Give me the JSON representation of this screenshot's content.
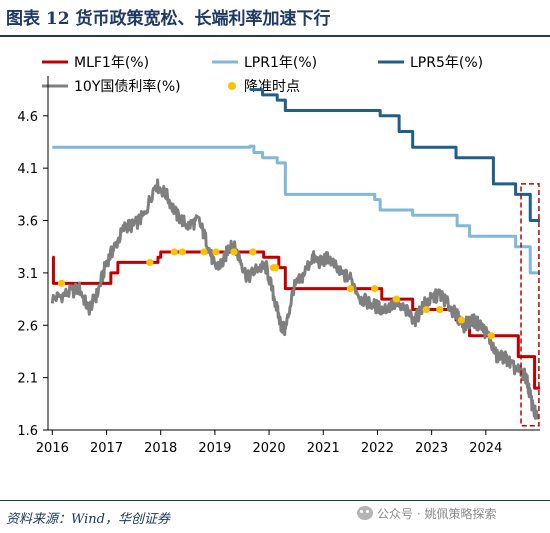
{
  "header": {
    "title": "图表 12   货币政策宽松、长端利率加速下行"
  },
  "footer": {
    "source": "资料来源：Wind，华创证券",
    "watermark": "公众号 · 姚佩策略探索"
  },
  "chart_data": {
    "type": "line",
    "xlim": [
      2015.92,
      2025.0
    ],
    "ylim": [
      1.6,
      4.98
    ],
    "x_ticks": [
      "2016",
      "2017",
      "2018",
      "2019",
      "2020",
      "2021",
      "2022",
      "2023",
      "2024"
    ],
    "y_ticks": [
      "1.6",
      "2.1",
      "2.6",
      "3.1",
      "3.6",
      "4.1",
      "4.6"
    ],
    "grid": false,
    "legend_position": "top",
    "colors": {
      "mlf": "#c00000",
      "lpr1": "#7fb8d8",
      "lpr5": "#1f5f8b",
      "y10": "#7f7f7f",
      "cut": "#ffc000",
      "highlight": "#c00000"
    },
    "series": [
      {
        "name": "MLF1年(%)",
        "style": "step",
        "x": [
          2016.0,
          2016.02,
          2016.05,
          2017.08,
          2017.21,
          2017.95,
          2018.0,
          2019.9,
          2020.18,
          2020.3,
          2022.08,
          2022.65,
          2023.45,
          2023.7,
          2024.6,
          2024.9,
          2025.0
        ],
        "y": [
          3.25,
          3.0,
          3.0,
          3.1,
          3.2,
          3.25,
          3.3,
          3.25,
          3.15,
          2.95,
          2.85,
          2.75,
          2.65,
          2.5,
          2.3,
          2.0,
          2.0
        ]
      },
      {
        "name": "LPR1年(%)",
        "style": "step",
        "x": [
          2016.0,
          2019.65,
          2019.72,
          2019.88,
          2020.15,
          2020.3,
          2021.95,
          2022.05,
          2022.65,
          2023.47,
          2023.7,
          2024.55,
          2024.82,
          2025.0
        ],
        "y": [
          4.3,
          4.31,
          4.25,
          4.2,
          4.15,
          3.85,
          3.8,
          3.7,
          3.65,
          3.55,
          3.45,
          3.35,
          3.1,
          3.1
        ]
      },
      {
        "name": "LPR5年(%)",
        "style": "step",
        "x": [
          2019.65,
          2019.88,
          2020.15,
          2020.3,
          2022.05,
          2022.4,
          2022.65,
          2023.45,
          2024.14,
          2024.55,
          2024.82,
          2025.0
        ],
        "y": [
          4.85,
          4.8,
          4.75,
          4.65,
          4.6,
          4.45,
          4.3,
          4.2,
          3.95,
          3.85,
          3.6,
          3.6
        ]
      },
      {
        "name": "10Y国债利率(%)",
        "style": "line",
        "x": [
          2016.0,
          2016.25,
          2016.5,
          2016.67,
          2016.83,
          2017.0,
          2017.15,
          2017.35,
          2017.5,
          2017.7,
          2017.9,
          2018.1,
          2018.3,
          2018.5,
          2018.7,
          2018.85,
          2019.0,
          2019.15,
          2019.3,
          2019.45,
          2019.6,
          2019.8,
          2019.95,
          2020.1,
          2020.22,
          2020.3,
          2020.45,
          2020.6,
          2020.8,
          2020.95,
          2021.1,
          2021.3,
          2021.5,
          2021.7,
          2021.9,
          2022.1,
          2022.3,
          2022.5,
          2022.7,
          2022.85,
          2023.0,
          2023.15,
          2023.3,
          2023.45,
          2023.6,
          2023.75,
          2023.9,
          2024.05,
          2024.2,
          2024.35,
          2024.5,
          2024.65,
          2024.75,
          2024.85,
          2024.95
        ],
        "y": [
          2.85,
          2.9,
          2.95,
          2.75,
          2.9,
          3.2,
          3.35,
          3.55,
          3.55,
          3.65,
          3.95,
          3.85,
          3.65,
          3.55,
          3.6,
          3.4,
          3.15,
          3.2,
          3.4,
          3.25,
          3.05,
          3.15,
          3.15,
          2.85,
          2.6,
          2.55,
          2.95,
          3.05,
          3.25,
          3.2,
          3.25,
          3.1,
          3.05,
          2.85,
          2.8,
          2.75,
          2.8,
          2.75,
          2.65,
          2.8,
          2.85,
          2.9,
          2.8,
          2.7,
          2.6,
          2.65,
          2.6,
          2.5,
          2.3,
          2.3,
          2.2,
          2.15,
          2.1,
          1.85,
          1.7
        ]
      }
    ],
    "cut_points": {
      "name": "降准时点",
      "x": [
        2016.17,
        2017.8,
        2018.25,
        2018.4,
        2018.8,
        2019.02,
        2019.35,
        2019.7,
        2020.08,
        2020.12,
        2021.5,
        2021.95,
        2022.35,
        2022.9,
        2023.15,
        2023.55,
        2024.1
      ],
      "y": [
        3.0,
        3.2,
        3.3,
        3.3,
        3.3,
        3.3,
        3.3,
        3.3,
        3.15,
        3.15,
        2.95,
        2.95,
        2.85,
        2.75,
        2.75,
        2.65,
        2.5
      ]
    },
    "highlight_box": {
      "x": [
        2024.65,
        2024.98
      ],
      "y": [
        1.64,
        3.95
      ]
    }
  }
}
